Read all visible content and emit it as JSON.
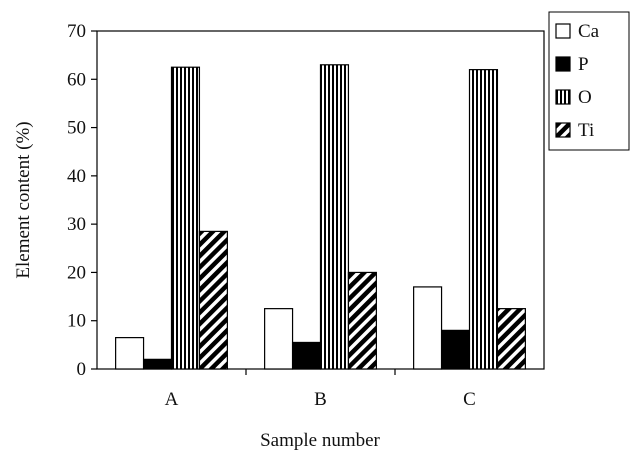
{
  "chart_data": {
    "type": "bar",
    "title": "",
    "xlabel": "Sample number",
    "ylabel": "Element content (%)",
    "ylim": [
      0,
      70
    ],
    "yticks": [
      0,
      10,
      20,
      30,
      40,
      50,
      60,
      70
    ],
    "grid": false,
    "legend_position": "right",
    "categories": [
      "A",
      "B",
      "C"
    ],
    "series": [
      {
        "name": "Ca",
        "values": [
          6.5,
          12.5,
          17
        ],
        "pattern": "empty",
        "color": "#ffffff"
      },
      {
        "name": "P",
        "values": [
          2,
          5.5,
          8
        ],
        "pattern": "solid",
        "color": "#000000"
      },
      {
        "name": "O",
        "values": [
          62.5,
          63,
          62
        ],
        "pattern": "vertical-stripes",
        "color": "#000000"
      },
      {
        "name": "Ti",
        "values": [
          28.5,
          20,
          12.5
        ],
        "pattern": "diagonal-stripes",
        "color": "#000000"
      }
    ]
  }
}
